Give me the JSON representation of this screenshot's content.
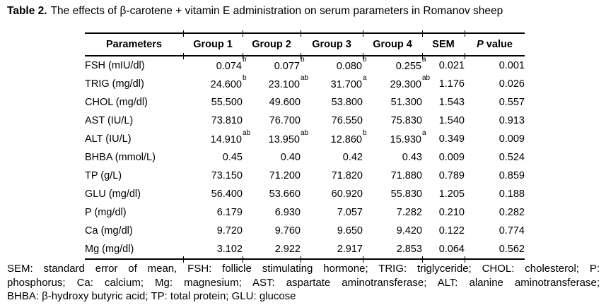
{
  "title": {
    "label": "Table 2.",
    "text": "The effects of β-carotene + vitamin E administration on serum parameters in Romanov sheep"
  },
  "table": {
    "headers": [
      "Parameters",
      "Group 1",
      "Group 2",
      "Group 3",
      "Group 4",
      "SEM"
    ],
    "p_header": {
      "italic": "P",
      "rest": " value"
    },
    "rows": [
      {
        "param": "FSH (mIU/dl)",
        "cells": [
          {
            "v": "0.074",
            "s": "b"
          },
          {
            "v": "0.077",
            "s": "b"
          },
          {
            "v": "0.080",
            "s": "b"
          },
          {
            "v": "0.255",
            "s": "a"
          },
          {
            "v": "0.021"
          },
          {
            "v": "0.001"
          }
        ]
      },
      {
        "param": "TRIG (mg/dl)",
        "cells": [
          {
            "v": "24.600",
            "s": "b"
          },
          {
            "v": "23.100",
            "s": "ab"
          },
          {
            "v": "31.700",
            "s": "a"
          },
          {
            "v": "29.300",
            "s": "ab"
          },
          {
            "v": "1.176"
          },
          {
            "v": "0.026"
          }
        ]
      },
      {
        "param": "CHOL (mg/dl)",
        "cells": [
          {
            "v": "55.500"
          },
          {
            "v": "49.600"
          },
          {
            "v": "53.800"
          },
          {
            "v": "51.300"
          },
          {
            "v": "1.543"
          },
          {
            "v": "0.557"
          }
        ]
      },
      {
        "param": "AST (IU/L)",
        "cells": [
          {
            "v": "73.810"
          },
          {
            "v": "76.700"
          },
          {
            "v": "76.550"
          },
          {
            "v": "75.830"
          },
          {
            "v": "1.540"
          },
          {
            "v": "0.913"
          }
        ]
      },
      {
        "param": "ALT (IU/L)",
        "cells": [
          {
            "v": "14.910",
            "s": "ab"
          },
          {
            "v": "13.950",
            "s": "ab"
          },
          {
            "v": "12.860",
            "s": "b"
          },
          {
            "v": "15.930",
            "s": "a"
          },
          {
            "v": "0.349"
          },
          {
            "v": "0.009"
          }
        ]
      },
      {
        "param": "BHBA (mmol/L)",
        "cells": [
          {
            "v": "0.45"
          },
          {
            "v": "0.40"
          },
          {
            "v": "0.42"
          },
          {
            "v": "0.43"
          },
          {
            "v": "0.009"
          },
          {
            "v": "0.524"
          }
        ]
      },
      {
        "param": "TP (g/L)",
        "cells": [
          {
            "v": "73.150"
          },
          {
            "v": "71.200"
          },
          {
            "v": "71.820"
          },
          {
            "v": "71.880"
          },
          {
            "v": "0.789"
          },
          {
            "v": "0.859"
          }
        ]
      },
      {
        "param": "GLU (mg/dl)",
        "cells": [
          {
            "v": "56.400"
          },
          {
            "v": "53.660"
          },
          {
            "v": "60.920"
          },
          {
            "v": "55.830"
          },
          {
            "v": "1.205"
          },
          {
            "v": "0.188"
          }
        ]
      },
      {
        "param": "P (mg/dl)",
        "cells": [
          {
            "v": "6.179"
          },
          {
            "v": "6.930"
          },
          {
            "v": "7.057"
          },
          {
            "v": "7.282"
          },
          {
            "v": "0.210"
          },
          {
            "v": "0.282"
          }
        ]
      },
      {
        "param": "Ca (mg/dl)",
        "cells": [
          {
            "v": "9.720"
          },
          {
            "v": "9.760"
          },
          {
            "v": "9.650"
          },
          {
            "v": "9.420"
          },
          {
            "v": "0.122"
          },
          {
            "v": "0.774"
          }
        ]
      },
      {
        "param": "Mg (mg/dl)",
        "cells": [
          {
            "v": "3.102"
          },
          {
            "v": "2.922"
          },
          {
            "v": "2.917"
          },
          {
            "v": "2.853"
          },
          {
            "v": "0.064"
          },
          {
            "v": "0.562"
          }
        ]
      }
    ]
  },
  "footnote": {
    "lines": [
      "SEM: standard error of mean, FSH: follicle stimulating hormone; TRIG: triglyceride; CHOL: cholesterol; P:",
      "phosphorus; Ca: calcium; Mg: magnesium; AST: aspartate aminotransferase; ALT: alanine aminotransferase;",
      "BHBA: β-hydroxy butyric acid; TP: total protein; GLU: glucose"
    ]
  },
  "colors": {
    "text": "#000000",
    "background": "#ffffff",
    "rule": "#000000"
  }
}
